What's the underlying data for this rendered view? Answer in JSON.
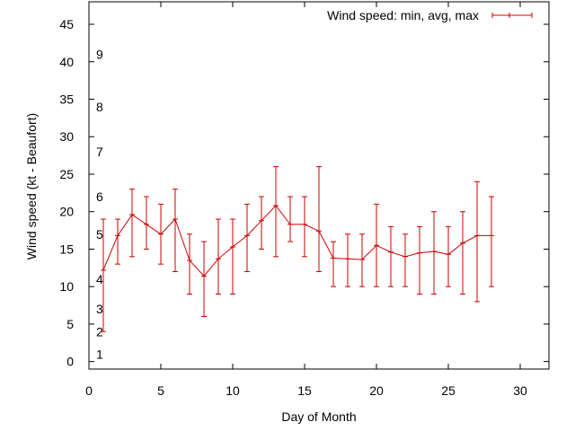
{
  "chart_data": {
    "type": "line",
    "title": "",
    "xlabel": "Day of Month",
    "ylabel": "Wind speed (kt - Beaufort)",
    "xlim": [
      0,
      32
    ],
    "ylim": [
      -1,
      48
    ],
    "x_ticks": [
      0,
      5,
      10,
      15,
      20,
      25,
      30
    ],
    "y_ticks": [
      0,
      5,
      10,
      15,
      20,
      25,
      30,
      35,
      40,
      45
    ],
    "grid": false,
    "legend_position": "top-right",
    "beaufort_labels": [
      {
        "label": "1",
        "at": 1
      },
      {
        "label": "2",
        "at": 4
      },
      {
        "label": "3",
        "at": 7
      },
      {
        "label": "4",
        "at": 11
      },
      {
        "label": "5",
        "at": 17
      },
      {
        "label": "6",
        "at": 22
      },
      {
        "label": "7",
        "at": 28
      },
      {
        "label": "8",
        "at": 34
      },
      {
        "label": "9",
        "at": 41
      }
    ],
    "series": [
      {
        "name": "Wind speed: min, avg, max",
        "color": "#cc0000",
        "x": [
          1,
          2,
          3,
          4,
          5,
          6,
          7,
          8,
          9,
          10,
          11,
          12,
          13,
          14,
          15,
          16,
          17,
          18,
          19,
          20,
          21,
          22,
          23,
          24,
          25,
          26,
          27,
          28
        ],
        "avg": [
          12.2,
          16.8,
          19.6,
          18.3,
          17.0,
          19.0,
          13.5,
          11.4,
          13.7,
          15.3,
          16.8,
          18.8,
          20.8,
          18.3,
          18.3,
          17.4,
          13.8,
          13.7,
          13.6,
          15.5,
          14.6,
          14.0,
          14.5,
          14.7,
          14.3,
          15.8,
          16.8,
          16.8
        ],
        "min": [
          4,
          13,
          14,
          15,
          13,
          12,
          9,
          6,
          9,
          9,
          12,
          15,
          14,
          16,
          14,
          12,
          10,
          10,
          10,
          10,
          10,
          10,
          9,
          9,
          10,
          9,
          8,
          10
        ],
        "max": [
          19,
          19,
          23,
          22,
          21,
          23,
          17,
          16,
          19,
          19,
          21,
          22,
          26,
          22,
          22,
          26,
          16,
          17,
          17,
          21,
          18,
          17,
          18,
          20,
          18,
          20,
          24,
          22
        ]
      }
    ]
  }
}
